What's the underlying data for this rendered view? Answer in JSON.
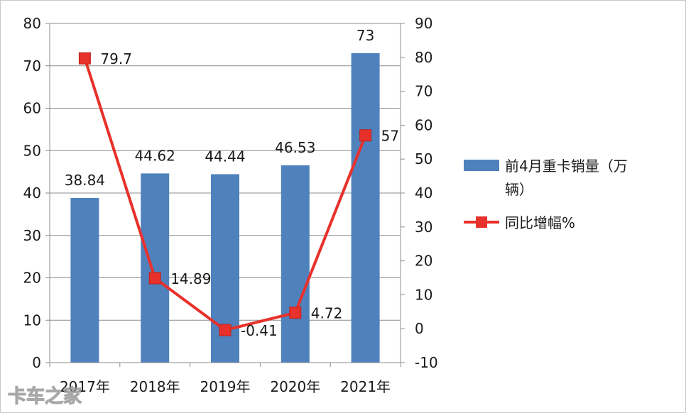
{
  "chart_data": {
    "type": "bar",
    "categories": [
      "2017年",
      "2018年",
      "2019年",
      "2020年",
      "2021年"
    ],
    "series": [
      {
        "name": "前4月重卡销量（万辆）",
        "type": "bar",
        "axis": "left",
        "values": [
          38.84,
          44.62,
          44.44,
          46.53,
          73
        ],
        "labels": [
          "38.84",
          "44.62",
          "44.44",
          "46.53",
          "73"
        ],
        "color": "#4f81bd"
      },
      {
        "name": "同比增幅%",
        "type": "line",
        "axis": "right",
        "values": [
          79.7,
          14.89,
          -0.41,
          4.72,
          57
        ],
        "labels": [
          "79.7",
          "14.89",
          "-0.41",
          "4.72",
          "57"
        ],
        "color": "#e8312b"
      }
    ],
    "left_axis": {
      "ylim": [
        0,
        80
      ],
      "ticks": [
        "0",
        "10",
        "20",
        "30",
        "40",
        "50",
        "60",
        "70",
        "80"
      ]
    },
    "right_axis": {
      "ylim": [
        -10,
        90
      ],
      "ticks": [
        "-10",
        "0",
        "10",
        "20",
        "30",
        "40",
        "50",
        "60",
        "70",
        "80",
        "90"
      ]
    },
    "grid": true,
    "legend": {
      "position": "right",
      "bar_label_lines": [
        "前4月重卡销量（万",
        "辆）"
      ],
      "line_label": "同比增幅%"
    },
    "watermark": "卡车之家"
  }
}
